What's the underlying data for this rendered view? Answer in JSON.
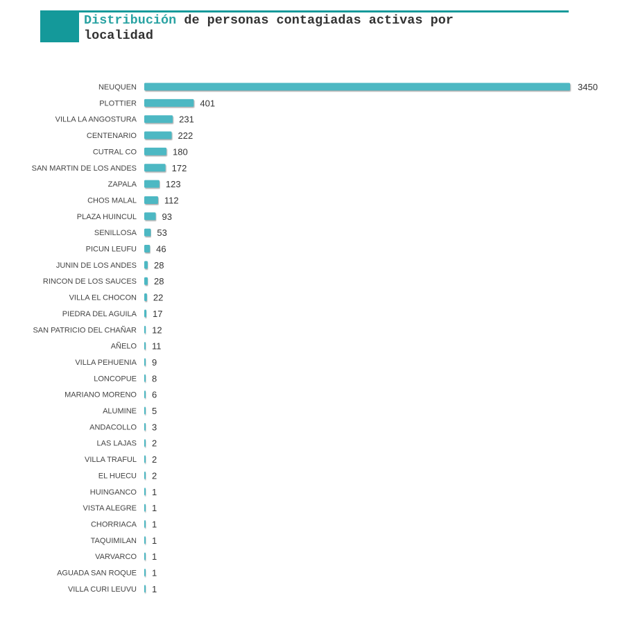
{
  "title": {
    "accent": "Distribución",
    "rest": " de personas contagiadas activas por localidad"
  },
  "colors": {
    "bar": "#4db8c3",
    "header": "#14999a"
  },
  "chart_data": {
    "type": "bar",
    "orientation": "horizontal",
    "title": "Distribución de personas contagiadas activas por localidad",
    "categories": [
      "NEUQUEN",
      "PLOTTIER",
      "VILLA LA ANGOSTURA",
      "CENTENARIO",
      "CUTRAL CO",
      "SAN MARTIN DE LOS ANDES",
      "ZAPALA",
      "CHOS MALAL",
      "PLAZA HUINCUL",
      "SENILLOSA",
      "PICUN LEUFU",
      "JUNIN DE LOS ANDES",
      "RINCON DE LOS SAUCES",
      "VILLA EL CHOCON",
      "PIEDRA DEL AGUILA",
      "SAN PATRICIO DEL CHAÑAR",
      "AÑELO",
      "VILLA PEHUENIA",
      "LONCOPUE",
      "MARIANO MORENO",
      "ALUMINE",
      "ANDACOLLO",
      "LAS LAJAS",
      "VILLA TRAFUL",
      "EL HUECU",
      "HUINGANCO",
      "VISTA ALEGRE",
      "CHORRIACA",
      "TAQUIMILAN",
      "VARVARCO",
      "AGUADA SAN ROQUE",
      "VILLA CURI LEUVU"
    ],
    "values": [
      3450,
      401,
      231,
      222,
      180,
      172,
      123,
      112,
      93,
      53,
      46,
      28,
      28,
      22,
      17,
      12,
      11,
      9,
      8,
      6,
      5,
      3,
      2,
      2,
      2,
      1,
      1,
      1,
      1,
      1,
      1,
      1
    ],
    "xlim": [
      0,
      3450
    ],
    "grid": false,
    "legend": "none"
  }
}
